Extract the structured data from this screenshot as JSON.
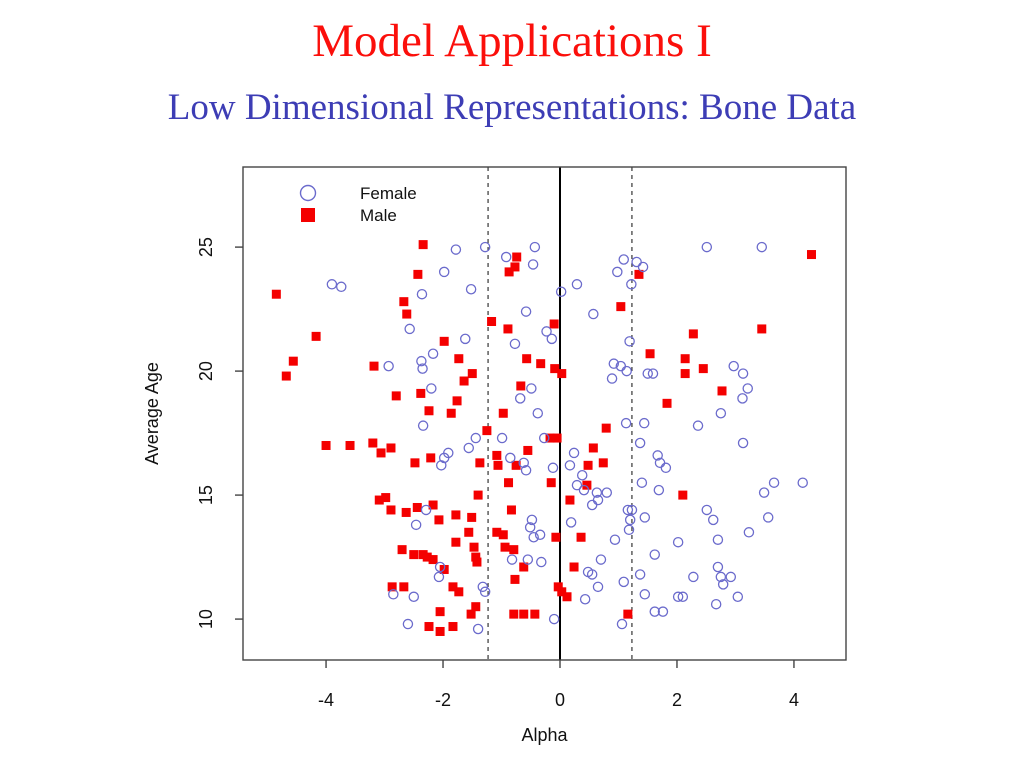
{
  "slide": {
    "title": "Model Applications I",
    "subtitle": "Low Dimensional Representations: Bone Data"
  },
  "colors": {
    "title_red": "#fb0f0b",
    "subtitle_blue": "#3d3db5",
    "male_red": "#f40000",
    "female_blue": "#6b6bcc",
    "axis_black": "#111111",
    "box_gray": "#444444"
  },
  "chart_data": {
    "type": "scatter",
    "title": "",
    "xlabel": "Alpha",
    "ylabel": "Average Age",
    "xlim": [
      -5.42,
      4.89
    ],
    "ylim": [
      8.35,
      28.23
    ],
    "x_ticks": [
      -4,
      -2,
      0,
      2,
      4
    ],
    "y_ticks": [
      10,
      15,
      20,
      25
    ],
    "grid": false,
    "legend_position": "top-left-inside",
    "reference_lines": {
      "solid_vertical_x": 0,
      "dashed_vertical_x": [
        -1.23,
        1.23
      ]
    },
    "series": [
      {
        "name": "Male",
        "marker": "filled-square",
        "points": [
          [
            -2.34,
            25.1
          ],
          [
            -2.43,
            23.9
          ],
          [
            -4.85,
            23.1
          ],
          [
            -2.67,
            22.8
          ],
          [
            -2.62,
            22.3
          ],
          [
            -4.17,
            21.4
          ],
          [
            -4.56,
            20.4
          ],
          [
            -4.68,
            19.8
          ],
          [
            -3.18,
            20.2
          ],
          [
            -2.38,
            19.1
          ],
          [
            -2.8,
            19.0
          ],
          [
            -2.24,
            18.4
          ],
          [
            -0.74,
            24.6
          ],
          [
            -0.77,
            24.2
          ],
          [
            -0.87,
            24.0
          ],
          [
            1.35,
            23.9
          ],
          [
            1.04,
            22.6
          ],
          [
            -1.17,
            22.0
          ],
          [
            -0.89,
            21.7
          ],
          [
            -0.1,
            21.9
          ],
          [
            -1.98,
            21.2
          ],
          [
            -1.73,
            20.5
          ],
          [
            -1.5,
            19.9
          ],
          [
            -1.64,
            19.6
          ],
          [
            -0.57,
            20.5
          ],
          [
            -0.33,
            20.3
          ],
          [
            -0.09,
            20.1
          ],
          [
            0.03,
            19.9
          ],
          [
            -0.67,
            19.4
          ],
          [
            -1.76,
            18.8
          ],
          [
            -0.97,
            18.3
          ],
          [
            4.3,
            24.7
          ],
          [
            3.45,
            21.7
          ],
          [
            2.28,
            21.5
          ],
          [
            1.54,
            20.7
          ],
          [
            2.14,
            20.5
          ],
          [
            2.45,
            20.1
          ],
          [
            2.14,
            19.9
          ],
          [
            2.77,
            19.2
          ],
          [
            1.83,
            18.7
          ],
          [
            -4.0,
            17.0
          ],
          [
            -3.59,
            17.0
          ],
          [
            -3.2,
            17.1
          ],
          [
            -3.06,
            16.7
          ],
          [
            -2.89,
            16.9
          ],
          [
            -2.48,
            16.3
          ],
          [
            -2.21,
            16.5
          ],
          [
            -2.98,
            14.9
          ],
          [
            -3.09,
            14.8
          ],
          [
            -2.89,
            14.4
          ],
          [
            -2.63,
            14.3
          ],
          [
            -2.44,
            14.5
          ],
          [
            -2.17,
            14.6
          ],
          [
            -2.07,
            14.0
          ],
          [
            -2.7,
            12.8
          ],
          [
            -2.5,
            12.6
          ],
          [
            -2.34,
            12.6
          ],
          [
            -2.27,
            12.5
          ],
          [
            -2.17,
            12.4
          ],
          [
            -2.87,
            11.3
          ],
          [
            -2.67,
            11.3
          ],
          [
            -2.05,
            10.3
          ],
          [
            -2.24,
            9.7
          ],
          [
            -2.05,
            9.5
          ],
          [
            -1.86,
            18.3
          ],
          [
            -1.25,
            17.6
          ],
          [
            -0.17,
            17.3
          ],
          [
            -0.05,
            17.3
          ],
          [
            0.79,
            17.7
          ],
          [
            -1.08,
            16.6
          ],
          [
            -1.06,
            16.2
          ],
          [
            -1.37,
            16.3
          ],
          [
            -0.55,
            16.8
          ],
          [
            -0.75,
            16.2
          ],
          [
            0.57,
            16.9
          ],
          [
            0.74,
            16.3
          ],
          [
            0.48,
            16.2
          ],
          [
            -0.15,
            15.5
          ],
          [
            -0.88,
            15.5
          ],
          [
            0.46,
            15.4
          ],
          [
            -1.4,
            15.0
          ],
          [
            0.17,
            14.8
          ],
          [
            -0.83,
            14.4
          ],
          [
            -1.78,
            14.2
          ],
          [
            -1.51,
            14.1
          ],
          [
            -1.78,
            13.1
          ],
          [
            -1.56,
            13.5
          ],
          [
            -1.08,
            13.5
          ],
          [
            -0.97,
            13.4
          ],
          [
            -1.47,
            12.9
          ],
          [
            -0.07,
            13.3
          ],
          [
            0.36,
            13.3
          ],
          [
            -0.94,
            12.9
          ],
          [
            -1.44,
            12.5
          ],
          [
            -1.42,
            12.3
          ],
          [
            -0.79,
            12.8
          ],
          [
            0.24,
            12.1
          ],
          [
            -0.62,
            12.1
          ],
          [
            -1.98,
            12.0
          ],
          [
            -1.83,
            11.3
          ],
          [
            -1.73,
            11.1
          ],
          [
            -0.77,
            11.6
          ],
          [
            -0.03,
            11.3
          ],
          [
            0.03,
            11.1
          ],
          [
            0.12,
            10.9
          ],
          [
            -1.44,
            10.5
          ],
          [
            -1.52,
            10.2
          ],
          [
            -1.83,
            9.7
          ],
          [
            -0.79,
            10.2
          ],
          [
            -0.62,
            10.2
          ],
          [
            -0.43,
            10.2
          ],
          [
            1.16,
            10.2
          ],
          [
            2.1,
            15.0
          ]
        ]
      },
      {
        "name": "Female",
        "marker": "open-circle",
        "points": [
          [
            -3.9,
            23.5
          ],
          [
            -3.74,
            23.4
          ],
          [
            -2.36,
            23.1
          ],
          [
            -2.57,
            21.7
          ],
          [
            -2.17,
            20.7
          ],
          [
            -2.37,
            20.4
          ],
          [
            -2.93,
            20.2
          ],
          [
            -2.35,
            20.1
          ],
          [
            -2.2,
            19.3
          ],
          [
            -1.78,
            24.9
          ],
          [
            -1.28,
            25.0
          ],
          [
            -1.98,
            24.0
          ],
          [
            -0.92,
            24.6
          ],
          [
            -0.43,
            25.0
          ],
          [
            -0.46,
            24.3
          ],
          [
            -1.52,
            23.3
          ],
          [
            0.02,
            23.2
          ],
          [
            0.29,
            23.5
          ],
          [
            1.09,
            24.5
          ],
          [
            1.31,
            24.4
          ],
          [
            0.98,
            24.0
          ],
          [
            1.22,
            23.5
          ],
          [
            -0.58,
            22.4
          ],
          [
            0.57,
            22.3
          ],
          [
            -1.62,
            21.3
          ],
          [
            -0.23,
            21.6
          ],
          [
            -0.14,
            21.3
          ],
          [
            -0.77,
            21.1
          ],
          [
            1.19,
            21.2
          ],
          [
            0.92,
            20.3
          ],
          [
            1.04,
            20.2
          ],
          [
            1.14,
            20.0
          ],
          [
            0.89,
            19.7
          ],
          [
            -0.49,
            19.3
          ],
          [
            -0.68,
            18.9
          ],
          [
            -0.38,
            18.3
          ],
          [
            2.51,
            25.0
          ],
          [
            3.45,
            25.0
          ],
          [
            1.42,
            24.2
          ],
          [
            2.97,
            20.2
          ],
          [
            3.13,
            19.9
          ],
          [
            1.59,
            19.9
          ],
          [
            1.5,
            19.9
          ],
          [
            3.21,
            19.3
          ],
          [
            3.12,
            18.9
          ],
          [
            2.75,
            18.3
          ],
          [
            -2.34,
            17.8
          ],
          [
            -2.03,
            16.2
          ],
          [
            -2.29,
            14.4
          ],
          [
            -2.46,
            13.8
          ],
          [
            -2.85,
            11.0
          ],
          [
            -2.5,
            10.9
          ],
          [
            -2.6,
            9.8
          ],
          [
            -2.07,
            11.7
          ],
          [
            -1.44,
            17.3
          ],
          [
            -1.56,
            16.9
          ],
          [
            -1.91,
            16.7
          ],
          [
            -1.98,
            16.5
          ],
          [
            -0.99,
            17.3
          ],
          [
            -0.27,
            17.3
          ],
          [
            -0.85,
            16.5
          ],
          [
            -0.62,
            16.3
          ],
          [
            -0.58,
            16.0
          ],
          [
            -0.12,
            16.1
          ],
          [
            0.24,
            16.7
          ],
          [
            0.17,
            16.2
          ],
          [
            0.38,
            15.8
          ],
          [
            0.29,
            15.4
          ],
          [
            0.41,
            15.2
          ],
          [
            0.63,
            15.1
          ],
          [
            0.65,
            14.8
          ],
          [
            0.8,
            15.1
          ],
          [
            0.55,
            14.6
          ],
          [
            1.16,
            14.4
          ],
          [
            1.23,
            14.4
          ],
          [
            1.2,
            14.0
          ],
          [
            1.18,
            13.6
          ],
          [
            -0.48,
            14.0
          ],
          [
            -0.51,
            13.7
          ],
          [
            -0.45,
            13.3
          ],
          [
            -0.34,
            13.4
          ],
          [
            0.19,
            13.9
          ],
          [
            0.94,
            13.2
          ],
          [
            0.7,
            12.4
          ],
          [
            0.48,
            11.9
          ],
          [
            0.55,
            11.8
          ],
          [
            -0.32,
            12.3
          ],
          [
            -0.55,
            12.4
          ],
          [
            -0.82,
            12.4
          ],
          [
            -2.05,
            12.1
          ],
          [
            -1.32,
            11.3
          ],
          [
            -1.28,
            11.1
          ],
          [
            0.65,
            11.3
          ],
          [
            0.43,
            10.8
          ],
          [
            1.09,
            11.5
          ],
          [
            -0.1,
            10.0
          ],
          [
            -1.4,
            9.6
          ],
          [
            1.06,
            9.8
          ],
          [
            1.37,
            11.8
          ],
          [
            1.4,
            15.5
          ],
          [
            1.37,
            17.1
          ],
          [
            1.13,
            17.9
          ],
          [
            1.44,
            17.9
          ],
          [
            2.36,
            17.8
          ],
          [
            3.13,
            17.1
          ],
          [
            1.67,
            16.6
          ],
          [
            1.71,
            16.3
          ],
          [
            1.81,
            16.1
          ],
          [
            1.69,
            15.2
          ],
          [
            3.66,
            15.5
          ],
          [
            4.15,
            15.5
          ],
          [
            3.49,
            15.1
          ],
          [
            2.51,
            14.4
          ],
          [
            2.62,
            14.0
          ],
          [
            3.56,
            14.1
          ],
          [
            3.23,
            13.5
          ],
          [
            2.02,
            13.1
          ],
          [
            2.7,
            13.2
          ],
          [
            1.62,
            12.6
          ],
          [
            1.45,
            14.1
          ],
          [
            2.7,
            12.1
          ],
          [
            2.28,
            11.7
          ],
          [
            2.75,
            11.7
          ],
          [
            2.92,
            11.7
          ],
          [
            2.79,
            11.4
          ],
          [
            2.02,
            10.9
          ],
          [
            2.1,
            10.9
          ],
          [
            2.67,
            10.6
          ],
          [
            3.04,
            10.9
          ],
          [
            1.62,
            10.3
          ],
          [
            1.76,
            10.3
          ],
          [
            1.45,
            11.0
          ]
        ]
      }
    ],
    "legend": [
      "Female",
      "Male"
    ]
  }
}
